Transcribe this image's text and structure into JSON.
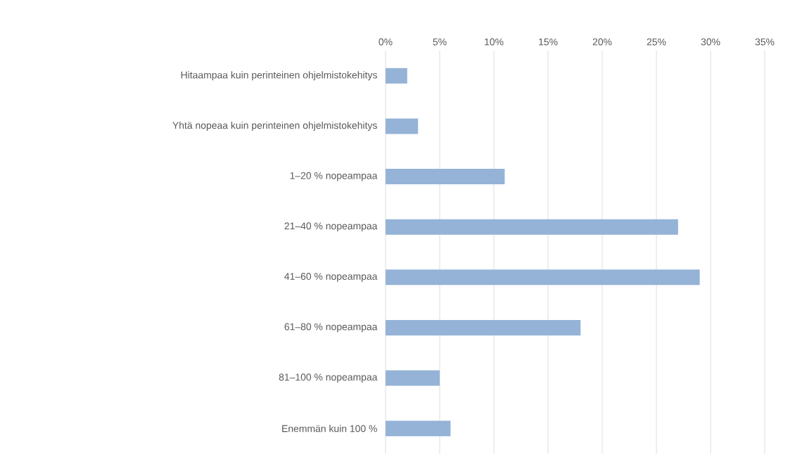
{
  "chart_data": {
    "type": "bar",
    "orientation": "horizontal",
    "categories": [
      "Hitaampaa kuin perinteinen ohjelmistokehitys",
      "Yhtä nopeaa kuin perinteinen ohjelmistokehitys",
      "1–20 % nopeampaa",
      "21–40 % nopeampaa",
      "41–60 % nopeampaa",
      "61–80 % nopeampaa",
      "81–100 % nopeampaa",
      "Enemmän kuin 100 %"
    ],
    "values": [
      2,
      3,
      11,
      27,
      29,
      18,
      5,
      6
    ],
    "color": "#95b3d7",
    "xlim": [
      0,
      35
    ],
    "xticks": [
      {
        "value": 0,
        "label": "0%"
      },
      {
        "value": 5,
        "label": "5%"
      },
      {
        "value": 10,
        "label": "10%"
      },
      {
        "value": 15,
        "label": "15%"
      },
      {
        "value": 20,
        "label": "20%"
      },
      {
        "value": 25,
        "label": "25%"
      },
      {
        "value": 30,
        "label": "30%"
      },
      {
        "value": 35,
        "label": "35%"
      }
    ],
    "grid": "x"
  }
}
